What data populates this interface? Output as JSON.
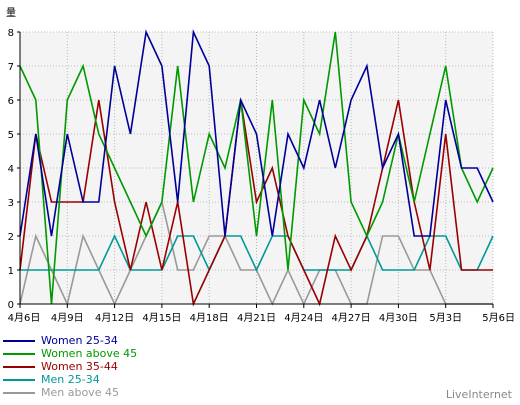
{
  "chart_data": {
    "type": "line",
    "ylabel": "量",
    "ylim": [
      0,
      8
    ],
    "yticks": [
      "0",
      "1",
      "2",
      "3",
      "4",
      "5",
      "6",
      "7",
      "8"
    ],
    "x": [
      "4月6日",
      "4月7日",
      "4月8日",
      "4月9日",
      "4月10日",
      "4月11日",
      "4月12日",
      "4月13日",
      "4月14日",
      "4月15日",
      "4月16日",
      "4月17日",
      "4月18日",
      "4月19日",
      "4月20日",
      "4月21日",
      "4月22日",
      "4月23日",
      "4月24日",
      "4月25日",
      "4月26日",
      "4月27日",
      "4月28日",
      "4月29日",
      "4月30日",
      "5月1日",
      "5月2日",
      "5月3日",
      "5月4日",
      "5月5日",
      "5月6日"
    ],
    "xtick_labels": [
      "4月6日",
      "4月9日",
      "4月12日",
      "4月15日",
      "4月18日",
      "4月21日",
      "4月24日",
      "4月27日",
      "4月30日",
      "5月3日",
      "5月6日"
    ],
    "grid": true,
    "legend": "bottom-left",
    "series": [
      {
        "name": "Women 25-34",
        "color": "#000099",
        "values": [
          2,
          5,
          2,
          5,
          3,
          3,
          7,
          5,
          8,
          7,
          3,
          8,
          7,
          2,
          6,
          5,
          2,
          5,
          4,
          6,
          4,
          6,
          7,
          4,
          5,
          2,
          2,
          6,
          4,
          4,
          3
        ]
      },
      {
        "name": "Women above 45",
        "color": "#009900",
        "values": [
          7,
          6,
          0,
          6,
          7,
          5,
          4,
          3,
          2,
          3,
          7,
          3,
          5,
          4,
          6,
          2,
          6,
          1,
          6,
          5,
          8,
          3,
          2,
          3,
          5,
          3,
          5,
          7,
          4,
          3,
          4
        ]
      },
      {
        "name": "Women 35-44",
        "color": "#990000",
        "values": [
          1,
          5,
          3,
          3,
          3,
          6,
          3,
          1,
          3,
          1,
          3,
          0,
          1,
          2,
          6,
          3,
          4,
          2,
          1,
          0,
          2,
          1,
          2,
          4,
          6,
          3,
          1,
          5,
          1,
          1,
          1
        ]
      },
      {
        "name": "Men 25-34",
        "color": "#009999",
        "values": [
          1,
          1,
          1,
          1,
          1,
          1,
          2,
          1,
          1,
          1,
          2,
          2,
          1,
          2,
          2,
          1,
          2,
          2,
          1,
          1,
          1,
          1,
          2,
          1,
          1,
          1,
          2,
          2,
          1,
          1,
          2
        ]
      },
      {
        "name": "Men above 45",
        "color": "#999999",
        "values": [
          0,
          2,
          1,
          0,
          2,
          1,
          0,
          1,
          2,
          3,
          1,
          1,
          2,
          2,
          1,
          1,
          0,
          1,
          0,
          1,
          1,
          0,
          0,
          2,
          2,
          1,
          1,
          0,
          0,
          0,
          0
        ]
      }
    ]
  },
  "brand": "LiveInternet"
}
